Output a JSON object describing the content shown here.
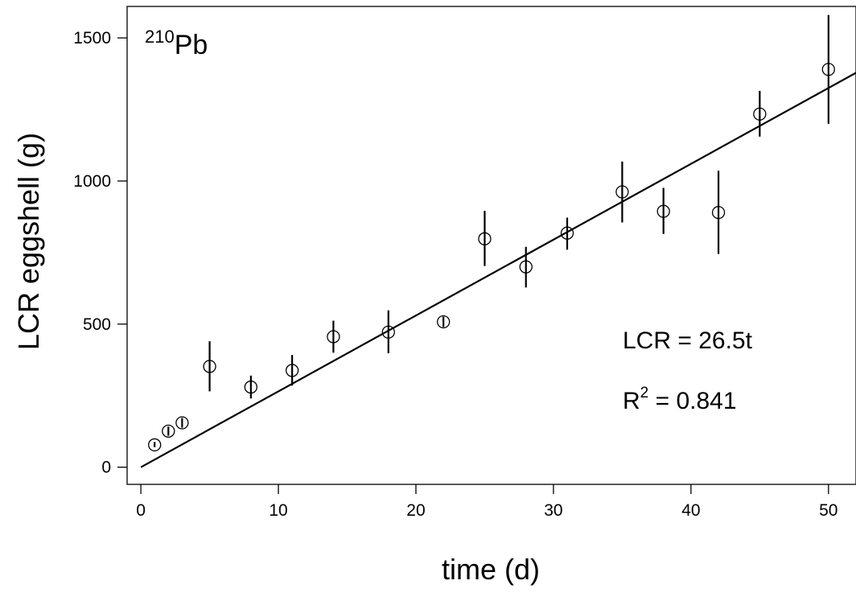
{
  "chart_data": {
    "type": "scatter",
    "title": "",
    "xlabel": "time (d)",
    "ylabel": "LCR eggshell (g)",
    "xlim": [
      -1,
      52
    ],
    "ylim": [
      -60,
      1610
    ],
    "x_ticks": [
      0,
      10,
      20,
      30,
      40,
      50
    ],
    "y_ticks": [
      0,
      500,
      1000,
      1500
    ],
    "grid": false,
    "legend": "none",
    "isotope_label": {
      "superscript": "210",
      "base": "Pb"
    },
    "points": [
      {
        "x": 1,
        "y": 78,
        "err_low": 70,
        "err_high": 88
      },
      {
        "x": 2,
        "y": 126,
        "err_low": 110,
        "err_high": 142
      },
      {
        "x": 3,
        "y": 155,
        "err_low": 138,
        "err_high": 172
      },
      {
        "x": 5,
        "y": 352,
        "err_low": 265,
        "err_high": 440
      },
      {
        "x": 8,
        "y": 280,
        "err_low": 240,
        "err_high": 320
      },
      {
        "x": 11,
        "y": 338,
        "err_low": 285,
        "err_high": 392
      },
      {
        "x": 14,
        "y": 456,
        "err_low": 400,
        "err_high": 512
      },
      {
        "x": 18,
        "y": 472,
        "err_low": 398,
        "err_high": 548
      },
      {
        "x": 22,
        "y": 508,
        "err_low": 490,
        "err_high": 526
      },
      {
        "x": 25,
        "y": 798,
        "err_low": 703,
        "err_high": 896
      },
      {
        "x": 28,
        "y": 700,
        "err_low": 628,
        "err_high": 770
      },
      {
        "x": 31,
        "y": 818,
        "err_low": 760,
        "err_high": 872
      },
      {
        "x": 35,
        "y": 962,
        "err_low": 855,
        "err_high": 1068
      },
      {
        "x": 38,
        "y": 894,
        "err_low": 815,
        "err_high": 976
      },
      {
        "x": 42,
        "y": 890,
        "err_low": 745,
        "err_high": 1036
      },
      {
        "x": 45,
        "y": 1234,
        "err_low": 1155,
        "err_high": 1315
      },
      {
        "x": 50,
        "y": 1390,
        "err_low": 1200,
        "err_high": 1580
      }
    ],
    "fit": {
      "slope": 26.5,
      "intercept": 0,
      "x_start": 0,
      "x_end": 52
    },
    "annotations": {
      "equation": "LCR = 26.5t",
      "r2_label_base": "R",
      "r2_label_sup": "2",
      "r2_label_value": " = 0.841"
    }
  }
}
